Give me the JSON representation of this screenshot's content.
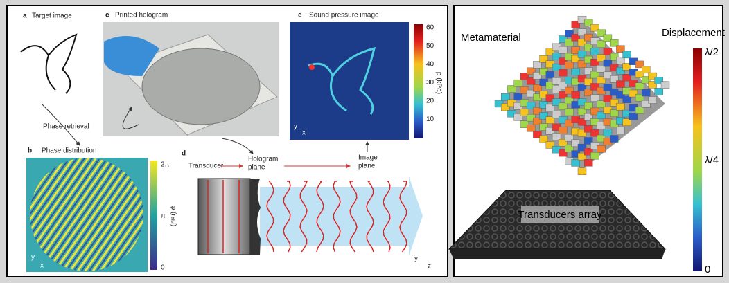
{
  "left_panel": {
    "a": {
      "letter": "a",
      "title": "Target image"
    },
    "c": {
      "letter": "c",
      "title": "Printed hologram"
    },
    "e": {
      "letter": "e",
      "title": "Sound pressure image",
      "colorbar_ticks": [
        60,
        50,
        40,
        30,
        20,
        10
      ],
      "colorbar_label": "p (kPa)",
      "axes": [
        "y",
        "x"
      ]
    },
    "arrow_label": "Phase retrieval",
    "b": {
      "letter": "b",
      "title": "Phase distribution",
      "colorbar_ticks": [
        "2π",
        "π",
        "0"
      ],
      "colorbar_label": "φ (rad)",
      "axes": [
        "y",
        "x"
      ]
    },
    "d": {
      "letter": "d",
      "transducer": "Transducer",
      "hologram_plane": [
        "Hologram",
        "plane"
      ],
      "image_plane": [
        "Image",
        "plane"
      ],
      "axes": [
        "y",
        "z"
      ]
    }
  },
  "right_panel": {
    "metamaterial": "Metamaterial",
    "displacement": "Displacement",
    "colorbar_ticks": [
      "λ/2",
      "λ/4",
      "0"
    ],
    "transducers": "Transducers array"
  }
}
